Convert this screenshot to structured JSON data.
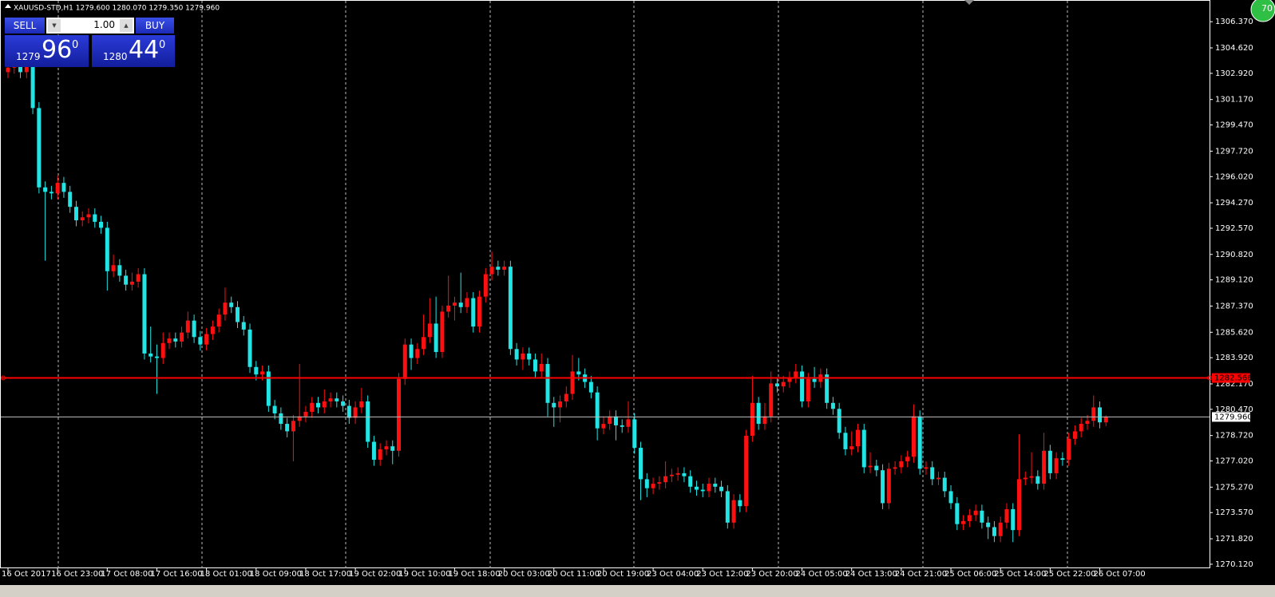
{
  "chart_data": {
    "type": "candlestick",
    "header": "XAUUSD-STD,H1  1279.600 1280.070 1279.350 1279.960",
    "up_color": "#ff1010",
    "down_color": "#22e4e4",
    "ylim": [
      1269.85,
      1307.82
    ],
    "yticks": [
      {
        "value": 1306.37,
        "label": "1306.370"
      },
      {
        "value": 1304.62,
        "label": "1304.620"
      },
      {
        "value": 1302.92,
        "label": "1302.920"
      },
      {
        "value": 1301.17,
        "label": "1301.170"
      },
      {
        "value": 1299.47,
        "label": "1299.470"
      },
      {
        "value": 1297.72,
        "label": "1297.720"
      },
      {
        "value": 1296.02,
        "label": "1296.020"
      },
      {
        "value": 1294.27,
        "label": "1294.270"
      },
      {
        "value": 1292.57,
        "label": "1292.570"
      },
      {
        "value": 1290.82,
        "label": "1290.820"
      },
      {
        "value": 1289.12,
        "label": "1289.120"
      },
      {
        "value": 1287.37,
        "label": "1287.370"
      },
      {
        "value": 1285.62,
        "label": "1285.620"
      },
      {
        "value": 1283.92,
        "label": "1283.920"
      },
      {
        "value": 1282.17,
        "label": "1282.170"
      },
      {
        "value": 1280.47,
        "label": "1280.470"
      },
      {
        "value": 1278.72,
        "label": "1278.720"
      },
      {
        "value": 1277.02,
        "label": "1277.020"
      },
      {
        "value": 1275.27,
        "label": "1275.270"
      },
      {
        "value": 1273.57,
        "label": "1273.570"
      },
      {
        "value": 1271.82,
        "label": "1271.820"
      },
      {
        "value": 1270.12,
        "label": "1270.120"
      }
    ],
    "levels": [
      {
        "value": 1282.566,
        "label": "1282.566",
        "color": "#ff0000"
      },
      {
        "value": 1279.96,
        "label": "1279.960",
        "color": "#c0c0c0"
      }
    ],
    "categories": [
      "16 Oct 2017",
      null,
      null,
      null,
      null,
      null,
      null,
      null,
      "16 Oct 23:00",
      null,
      null,
      null,
      null,
      null,
      null,
      null,
      "17 Oct 08:00",
      null,
      null,
      null,
      null,
      null,
      null,
      null,
      "17 Oct 16:00",
      null,
      null,
      null,
      null,
      null,
      null,
      null,
      "18 Oct 01:00",
      null,
      null,
      null,
      null,
      null,
      null,
      null,
      "18 Oct 09:00",
      null,
      null,
      null,
      null,
      null,
      null,
      null,
      "18 Oct 17:00",
      null,
      null,
      null,
      null,
      null,
      null,
      null,
      "19 Oct 02:00",
      null,
      null,
      null,
      null,
      null,
      null,
      null,
      "19 Oct 10:00",
      null,
      null,
      null,
      null,
      null,
      null,
      null,
      "19 Oct 18:00",
      null,
      null,
      null,
      null,
      null,
      null,
      null,
      "20 Oct 03:00",
      null,
      null,
      null,
      null,
      null,
      null,
      null,
      "20 Oct 11:00",
      null,
      null,
      null,
      null,
      null,
      null,
      null,
      "20 Oct 19:00",
      null,
      null,
      null,
      null,
      null,
      null,
      null,
      "23 Oct 04:00",
      null,
      null,
      null,
      null,
      null,
      null,
      null,
      "23 Oct 12:00",
      null,
      null,
      null,
      null,
      null,
      null,
      null,
      "23 Oct 20:00",
      null,
      null,
      null,
      null,
      null,
      null,
      null,
      "24 Oct 05:00",
      null,
      null,
      null,
      null,
      null,
      null,
      null,
      "24 Oct 13:00",
      null,
      null,
      null,
      null,
      null,
      null,
      null,
      "24 Oct 21:00",
      null,
      null,
      null,
      null,
      null,
      null,
      null,
      "25 Oct 06:00",
      null,
      null,
      null,
      null,
      null,
      null,
      null,
      "25 Oct 14:00",
      null,
      null,
      null,
      null,
      null,
      null,
      null,
      "25 Oct 22:00",
      null,
      null,
      null,
      null,
      null,
      null,
      null,
      "26 Oct 07:00",
      null
    ],
    "open": [
      1303.0,
      1303.3,
      1303.6,
      1303.0,
      1303.4,
      1300.6,
      1295.3,
      1295.0,
      1294.9,
      1295.6,
      1295.0,
      1294.0,
      1293.1,
      1293.3,
      1293.5,
      1293.0,
      1292.6,
      1289.7,
      1290.1,
      1289.4,
      1288.8,
      1289.0,
      1289.5,
      1284.2,
      1284.0,
      1283.9,
      1284.9,
      1285.2,
      1285.0,
      1285.6,
      1286.4,
      1285.3,
      1284.8,
      1285.5,
      1286.0,
      1286.8,
      1287.6,
      1287.3,
      1286.3,
      1285.8,
      1283.3,
      1282.8,
      1283.0,
      1280.7,
      1280.2,
      1279.5,
      1279.0,
      1279.7,
      1280.0,
      1280.3,
      1280.9,
      1280.6,
      1281.0,
      1281.2,
      1281.0,
      1280.7,
      1279.9,
      1280.6,
      1281.0,
      1278.3,
      1277.1,
      1277.8,
      1278.0,
      1277.7,
      1282.5,
      1284.8,
      1283.9,
      1284.5,
      1285.3,
      1286.2,
      1284.3,
      1287.0,
      1287.4,
      1287.6,
      1287.3,
      1287.9,
      1286.0,
      1288.0,
      1289.5,
      1290.0,
      1289.8,
      1290.0,
      1284.5,
      1283.8,
      1284.2,
      1283.8,
      1283.0,
      1283.5,
      1280.9,
      1280.6,
      1281.0,
      1281.5,
      1283.0,
      1282.8,
      1282.3,
      1281.6,
      1279.2,
      1279.5,
      1280.0,
      1279.4,
      1279.3,
      1279.8,
      1277.9,
      1275.8,
      1275.2,
      1275.5,
      1275.6,
      1276.0,
      1276.1,
      1276.2,
      1276.0,
      1275.3,
      1275.1,
      1275.0,
      1275.5,
      1275.3,
      1275.0,
      1272.9,
      1274.4,
      1274.0,
      1278.7,
      1280.9,
      1279.5,
      1280.0,
      1282.2,
      1282.0,
      1282.3,
      1282.6,
      1283.0,
      1281.0,
      1282.5,
      1282.3,
      1282.8,
      1280.9,
      1280.5,
      1278.9,
      1277.8,
      1278.0,
      1279.1,
      1276.6,
      1276.7,
      1276.4,
      1274.2,
      1276.5,
      1276.6,
      1277.0,
      1277.3,
      1280.0,
      1276.5,
      1276.6,
      1275.8,
      1275.9,
      1275.0,
      1274.2,
      1272.8,
      1273.0,
      1273.4,
      1273.7,
      1272.9,
      1272.6,
      1272.0,
      1272.9,
      1273.8,
      1272.4,
      1275.8,
      1275.9,
      1276.0,
      1275.5,
      1277.7,
      1276.2,
      1277.2,
      1277.1,
      1278.5,
      1279.0,
      1279.5,
      1279.7,
      1280.6,
      1279.6
    ],
    "high": [
      1303.7,
      1304.0,
      1304.0,
      1303.8,
      1303.8,
      1301.0,
      1295.7,
      1295.4,
      1296.1,
      1296.0,
      1295.4,
      1294.4,
      1293.7,
      1293.9,
      1293.9,
      1293.4,
      1293.0,
      1290.8,
      1290.5,
      1289.8,
      1289.6,
      1289.9,
      1289.9,
      1286.0,
      1284.8,
      1285.6,
      1285.6,
      1285.6,
      1286.0,
      1287.0,
      1286.8,
      1285.7,
      1285.9,
      1286.4,
      1287.2,
      1288.6,
      1288.0,
      1287.7,
      1286.7,
      1286.2,
      1283.7,
      1283.4,
      1283.4,
      1281.1,
      1280.6,
      1279.9,
      1280.1,
      1283.5,
      1280.7,
      1281.3,
      1281.3,
      1281.8,
      1281.6,
      1281.6,
      1281.4,
      1281.1,
      1281.0,
      1281.9,
      1281.4,
      1278.7,
      1278.2,
      1278.4,
      1278.4,
      1282.9,
      1285.2,
      1285.2,
      1284.9,
      1286.8,
      1287.9,
      1288.0,
      1287.4,
      1289.4,
      1288.0,
      1289.6,
      1288.3,
      1288.3,
      1288.4,
      1289.9,
      1291.0,
      1290.4,
      1290.4,
      1290.4,
      1284.9,
      1284.6,
      1284.6,
      1284.2,
      1284.2,
      1283.9,
      1281.3,
      1281.4,
      1282.0,
      1284.1,
      1283.9,
      1283.2,
      1282.7,
      1282.0,
      1280.0,
      1280.4,
      1280.4,
      1279.8,
      1281.0,
      1280.2,
      1278.3,
      1276.2,
      1275.9,
      1276.0,
      1277.0,
      1276.5,
      1276.6,
      1276.6,
      1276.4,
      1275.7,
      1275.5,
      1275.9,
      1275.9,
      1275.7,
      1275.4,
      1274.8,
      1274.8,
      1279.1,
      1282.7,
      1281.3,
      1280.9,
      1283.0,
      1282.6,
      1282.7,
      1283.0,
      1283.5,
      1283.4,
      1282.9,
      1283.3,
      1283.2,
      1283.2,
      1281.3,
      1280.9,
      1279.3,
      1279.0,
      1279.5,
      1279.5,
      1277.6,
      1277.1,
      1276.8,
      1276.9,
      1277.0,
      1277.4,
      1277.7,
      1280.8,
      1280.4,
      1277.0,
      1277.0,
      1276.3,
      1276.3,
      1275.4,
      1274.6,
      1273.4,
      1273.8,
      1274.1,
      1274.1,
      1273.3,
      1273.0,
      1273.3,
      1274.2,
      1274.2,
      1278.8,
      1276.3,
      1277.6,
      1276.4,
      1278.9,
      1278.1,
      1277.6,
      1277.6,
      1278.9,
      1279.4,
      1279.9,
      1280.1,
      1281.4,
      1281.0,
      1280.07
    ],
    "low": [
      1302.6,
      1302.9,
      1302.6,
      1302.6,
      1300.2,
      1294.9,
      1290.4,
      1294.5,
      1294.5,
      1294.6,
      1293.6,
      1292.7,
      1292.7,
      1292.9,
      1292.6,
      1292.2,
      1288.4,
      1289.3,
      1289.0,
      1288.4,
      1288.4,
      1288.6,
      1283.8,
      1283.6,
      1281.5,
      1283.5,
      1284.5,
      1284.6,
      1284.6,
      1285.2,
      1284.9,
      1284.4,
      1284.4,
      1285.1,
      1285.6,
      1286.4,
      1286.9,
      1285.9,
      1285.4,
      1282.9,
      1282.4,
      1282.4,
      1280.3,
      1279.8,
      1279.1,
      1278.6,
      1277.0,
      1279.3,
      1279.6,
      1279.9,
      1280.2,
      1280.2,
      1280.6,
      1280.6,
      1280.3,
      1279.5,
      1279.5,
      1280.2,
      1277.9,
      1276.7,
      1276.7,
      1277.4,
      1276.8,
      1277.3,
      1282.1,
      1283.1,
      1283.5,
      1284.1,
      1284.9,
      1283.9,
      1283.9,
      1286.6,
      1286.4,
      1286.9,
      1286.9,
      1285.6,
      1285.6,
      1287.6,
      1289.1,
      1289.4,
      1289.4,
      1284.1,
      1283.4,
      1283.1,
      1283.4,
      1282.6,
      1282.6,
      1280.0,
      1279.3,
      1279.6,
      1280.6,
      1281.1,
      1282.4,
      1281.9,
      1281.2,
      1278.4,
      1278.8,
      1279.1,
      1278.4,
      1278.9,
      1278.9,
      1277.5,
      1274.4,
      1274.6,
      1274.8,
      1275.1,
      1275.2,
      1275.6,
      1275.7,
      1275.6,
      1274.9,
      1274.7,
      1274.6,
      1274.6,
      1274.9,
      1274.6,
      1272.5,
      1272.5,
      1273.6,
      1273.6,
      1278.3,
      1279.1,
      1279.1,
      1279.6,
      1281.6,
      1281.6,
      1281.9,
      1282.2,
      1280.6,
      1280.6,
      1281.9,
      1281.9,
      1280.5,
      1280.1,
      1278.5,
      1277.4,
      1277.4,
      1277.6,
      1276.2,
      1276.2,
      1276.0,
      1273.8,
      1273.8,
      1276.1,
      1276.2,
      1276.6,
      1276.9,
      1276.1,
      1276.1,
      1275.4,
      1275.4,
      1274.6,
      1273.8,
      1272.4,
      1272.4,
      1272.6,
      1273.0,
      1272.5,
      1271.8,
      1271.6,
      1271.6,
      1272.5,
      1271.6,
      1272.0,
      1275.4,
      1275.5,
      1275.1,
      1275.1,
      1275.8,
      1275.8,
      1276.7,
      1276.7,
      1278.1,
      1278.6,
      1279.1,
      1279.3,
      1279.2,
      1279.35
    ],
    "close": [
      1303.3,
      1303.6,
      1303.0,
      1303.4,
      1300.6,
      1295.3,
      1295.0,
      1294.9,
      1295.6,
      1295.0,
      1294.0,
      1293.1,
      1293.3,
      1293.5,
      1293.0,
      1292.6,
      1289.7,
      1290.1,
      1289.4,
      1288.8,
      1289.0,
      1289.5,
      1284.2,
      1284.0,
      1283.9,
      1284.9,
      1285.2,
      1285.0,
      1285.6,
      1286.4,
      1285.3,
      1284.8,
      1285.5,
      1286.0,
      1286.8,
      1287.6,
      1287.3,
      1286.3,
      1285.8,
      1283.3,
      1282.8,
      1283.0,
      1280.7,
      1280.2,
      1279.5,
      1279.0,
      1279.7,
      1280.0,
      1280.3,
      1280.9,
      1280.6,
      1281.0,
      1281.2,
      1281.0,
      1280.7,
      1279.9,
      1280.6,
      1281.0,
      1278.3,
      1277.1,
      1277.8,
      1278.0,
      1277.7,
      1282.5,
      1284.8,
      1283.9,
      1284.5,
      1285.3,
      1286.2,
      1284.3,
      1287.0,
      1287.4,
      1287.6,
      1287.3,
      1287.9,
      1286.0,
      1288.0,
      1289.5,
      1290.0,
      1289.8,
      1290.0,
      1284.5,
      1283.8,
      1284.2,
      1283.8,
      1283.0,
      1283.5,
      1280.9,
      1280.6,
      1281.0,
      1281.5,
      1283.0,
      1282.8,
      1282.3,
      1281.6,
      1279.2,
      1279.5,
      1280.0,
      1279.4,
      1279.3,
      1279.8,
      1277.9,
      1275.8,
      1275.2,
      1275.5,
      1275.6,
      1276.0,
      1276.1,
      1276.2,
      1276.0,
      1275.3,
      1275.1,
      1275.0,
      1275.5,
      1275.3,
      1275.0,
      1272.9,
      1274.4,
      1274.0,
      1278.7,
      1280.9,
      1279.5,
      1280.0,
      1282.2,
      1282.0,
      1282.3,
      1282.6,
      1283.0,
      1281.0,
      1282.5,
      1282.3,
      1282.8,
      1280.9,
      1280.5,
      1278.9,
      1277.8,
      1278.0,
      1279.1,
      1276.6,
      1276.7,
      1276.4,
      1274.2,
      1276.5,
      1276.6,
      1277.0,
      1277.3,
      1280.0,
      1276.5,
      1276.6,
      1275.8,
      1275.9,
      1275.0,
      1274.2,
      1272.8,
      1273.0,
      1273.4,
      1273.7,
      1272.9,
      1272.6,
      1272.0,
      1272.9,
      1273.8,
      1272.4,
      1275.8,
      1275.9,
      1276.0,
      1275.5,
      1277.7,
      1276.2,
      1277.2,
      1277.1,
      1278.5,
      1279.0,
      1279.5,
      1279.7,
      1280.6,
      1279.6,
      1279.96
    ],
    "panel": {
      "sell": "SELL",
      "buy": "BUY",
      "lots": "1.00",
      "bid_big": "1279",
      "bid_main": "96",
      "bid_sup": "0",
      "ask_big": "1280",
      "ask_main": "44",
      "ask_sup": "0"
    },
    "badge": "70"
  }
}
